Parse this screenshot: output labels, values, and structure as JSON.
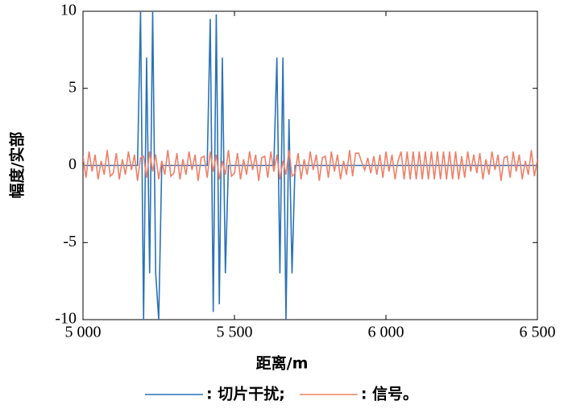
{
  "chart_data": {
    "type": "line",
    "xlabel": "距离/m",
    "ylabel": "幅度/实部",
    "xlim": [
      5000,
      6500
    ],
    "xticks": [
      {
        "value": 5000,
        "label": "5 000"
      },
      {
        "value": 5500,
        "label": "5 500"
      },
      {
        "value": 6000,
        "label": "6 000"
      },
      {
        "value": 6500,
        "label": "6 500"
      }
    ],
    "ylim": [
      -10,
      10
    ],
    "yticks": [
      10,
      5,
      0,
      -5,
      -10
    ],
    "grid": false,
    "legend": "bottom",
    "x": [
      5000,
      5010,
      5020,
      5030,
      5040,
      5050,
      5060,
      5070,
      5080,
      5090,
      5100,
      5110,
      5120,
      5130,
      5140,
      5150,
      5160,
      5170,
      5180,
      5190,
      5200,
      5210,
      5220,
      5230,
      5240,
      5250,
      5260,
      5270,
      5280,
      5290,
      5300,
      5310,
      5320,
      5330,
      5340,
      5350,
      5360,
      5370,
      5380,
      5390,
      5400,
      5410,
      5420,
      5430,
      5440,
      5450,
      5460,
      5470,
      5480,
      5490,
      5500,
      5510,
      5520,
      5530,
      5540,
      5550,
      5560,
      5570,
      5580,
      5590,
      5600,
      5610,
      5620,
      5630,
      5640,
      5650,
      5660,
      5670,
      5680,
      5690,
      5700,
      5710,
      5720,
      5730,
      5740,
      5750,
      5760,
      5770,
      5780,
      5790,
      5800,
      5810,
      5820,
      5830,
      5840,
      5850,
      5860,
      5870,
      5880,
      5890,
      5900,
      5910,
      5920,
      5930,
      5940,
      5950,
      5960,
      5970,
      5980,
      5990,
      6000,
      6010,
      6020,
      6030,
      6040,
      6050,
      6060,
      6070,
      6080,
      6090,
      6100,
      6110,
      6120,
      6130,
      6140,
      6150,
      6160,
      6170,
      6180,
      6190,
      6200,
      6210,
      6220,
      6230,
      6240,
      6250,
      6260,
      6270,
      6280,
      6290,
      6300,
      6310,
      6320,
      6330,
      6340,
      6350,
      6360,
      6370,
      6380,
      6390,
      6400,
      6410,
      6420,
      6430,
      6440,
      6450,
      6460,
      6470,
      6480,
      6490,
      6500
    ],
    "series": [
      {
        "name": ": 切片干扰;",
        "color": "#2a72b8",
        "values": [
          0,
          0,
          0,
          0,
          0,
          0,
          0,
          0,
          0,
          0,
          0,
          0,
          0,
          0,
          0,
          0,
          0,
          0,
          0,
          10,
          -10,
          7,
          -7,
          10,
          -7,
          -10,
          0,
          0,
          0,
          0,
          0,
          0,
          0,
          0,
          0,
          0,
          0,
          0,
          0,
          0,
          0,
          0,
          9.5,
          -9.5,
          9.8,
          -9,
          7,
          -7,
          0,
          0,
          0,
          0,
          0,
          0,
          0,
          0,
          0,
          0,
          0,
          0,
          0,
          0,
          0,
          0,
          7,
          -7,
          7,
          -10,
          3,
          -7,
          0,
          0,
          0,
          0,
          0,
          0,
          0,
          0,
          0,
          0,
          0,
          0,
          0,
          0,
          0,
          0,
          0,
          0,
          0,
          0,
          0,
          0,
          0,
          0,
          0,
          0,
          0,
          0,
          0,
          0,
          0,
          0,
          0,
          0,
          0,
          0,
          0,
          0,
          0,
          0,
          0,
          0,
          0,
          0,
          0,
          0,
          0,
          0,
          0,
          0,
          0,
          0,
          0,
          0,
          0,
          0,
          0,
          0,
          0,
          0,
          0,
          0,
          0,
          0,
          0,
          0,
          0,
          0,
          0,
          0,
          0,
          0,
          0,
          0,
          0,
          0,
          0,
          0,
          0,
          0,
          0
        ]
      },
      {
        "name": ": 信号。",
        "color": "#ef8068",
        "values": [
          0.6,
          -0.8,
          0.9,
          -0.4,
          0.7,
          -0.9,
          0.3,
          -0.6,
          1,
          -0.7,
          -0.5,
          0.8,
          -0.9,
          0.4,
          -0.6,
          0.9,
          -0.3,
          0.7,
          -1,
          0.5,
          0.6,
          -0.8,
          0.9,
          -0.4,
          0.7,
          -0.9,
          0.3,
          -0.6,
          1,
          -0.7,
          -0.5,
          0.8,
          -0.9,
          0.4,
          -0.6,
          0.9,
          -0.3,
          0.7,
          -1,
          0.5,
          0.6,
          -0.8,
          0.9,
          -0.4,
          0.7,
          -0.9,
          0.3,
          -0.6,
          1,
          -0.7,
          -0.5,
          0.8,
          -0.9,
          0.4,
          -0.6,
          0.9,
          -0.3,
          0.7,
          -1,
          0.5,
          0.6,
          -0.8,
          0.9,
          -0.4,
          0.7,
          -0.9,
          0.3,
          -0.6,
          1,
          -0.7,
          -0.5,
          0.8,
          -0.9,
          0.4,
          -0.6,
          0.9,
          -0.3,
          0.7,
          -1,
          0.5,
          0.6,
          -0.8,
          0.9,
          -0.4,
          0.7,
          -0.9,
          0.3,
          -0.6,
          1,
          -0.7,
          0.8,
          0.8,
          0.2,
          -0.3,
          0.5,
          -0.5,
          0.6,
          -0.6,
          0.7,
          -0.8,
          0.9,
          -0.4,
          0.7,
          -0.9,
          0.3,
          0.9,
          -0.9,
          0.9,
          -0.9,
          0.9,
          -0.9,
          0.9,
          -0.9,
          0.9,
          -0.9,
          0.9,
          -0.9,
          0.9,
          -0.9,
          0.9,
          -0.9,
          0.9,
          -0.9,
          0.9,
          -0.9,
          0.6,
          -0.8,
          0.9,
          -0.4,
          0.7,
          -0.5,
          0.8,
          -0.9,
          0.4,
          -0.6,
          0.9,
          -0.3,
          0.7,
          -1,
          0.5,
          0.6,
          -0.8,
          0.9,
          -0.4,
          0.7,
          -0.9,
          0.3,
          -0.6,
          1,
          -0.7,
          0.4
        ]
      }
    ]
  }
}
